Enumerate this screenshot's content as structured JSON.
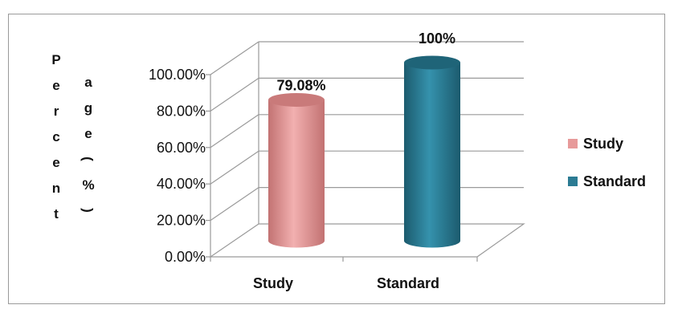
{
  "chart_data": {
    "type": "bar",
    "subtype": "3d-cylinder",
    "categories": [
      "Study",
      "Standard"
    ],
    "values": [
      79.08,
      100
    ],
    "data_labels": [
      "79.08%",
      "100%"
    ],
    "ylabel_columns": [
      [
        "P",
        "e",
        "r",
        "c",
        "e",
        "n",
        "t"
      ],
      [
        "a",
        "g",
        "e",
        "(",
        "%",
        ")"
      ]
    ],
    "ylim": [
      0,
      100
    ],
    "yticks": [
      "0.00%",
      "20.00%",
      "40.00%",
      "60.00%",
      "80.00%",
      "100.00%"
    ],
    "legend": {
      "position": "right",
      "entries": [
        {
          "name": "Study",
          "color": "#e79a9a"
        },
        {
          "name": "Standard",
          "color": "#2b7b93"
        }
      ]
    },
    "grid": true
  },
  "colors": {
    "study": "#e79a9a",
    "study_dark": "#c06e6e",
    "study_top": "#c97a7a",
    "standard": "#2b7b93",
    "standard_dark": "#1a5568",
    "standard_top": "#1f6478",
    "grid": "#9a9a9a"
  }
}
